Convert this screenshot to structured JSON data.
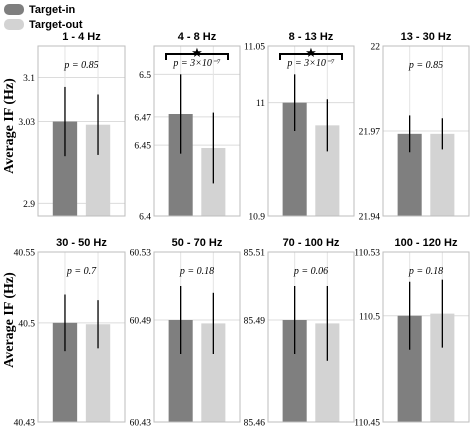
{
  "legend": [
    {
      "label": "Target-in",
      "color": "#7f7f7f"
    },
    {
      "label": "Target-out",
      "color": "#d3d3d3"
    }
  ],
  "ylabel": "Average IF (Hz)",
  "colors": {
    "target_in": "#7f7f7f",
    "target_out": "#d3d3d3"
  },
  "chart_data": [
    {
      "type": "bar",
      "title": "1 - 4 Hz",
      "categories": [
        "Target-in",
        "Target-out"
      ],
      "values": [
        3.03,
        3.025
      ],
      "errors": [
        0.055,
        0.048
      ],
      "ylim": [
        2.88,
        3.15
      ],
      "yticks": [
        "2.9",
        "3.03",
        "3.1"
      ],
      "tick_values": [
        2.9,
        3.03,
        3.1
      ],
      "p_text": "p = 0.85",
      "significance": false,
      "star": ""
    },
    {
      "type": "bar",
      "title": "4 - 8 Hz",
      "categories": [
        "Target-in",
        "Target-out"
      ],
      "values": [
        6.472,
        6.448
      ],
      "errors": [
        0.028,
        0.025
      ],
      "ylim": [
        6.4,
        6.52
      ],
      "yticks": [
        "6.4",
        "6.45",
        "6.47",
        "6.5"
      ],
      "tick_values": [
        6.4,
        6.45,
        6.47,
        6.5
      ],
      "p_text": "p = 3×10⁻⁷",
      "significance": true,
      "star": "★"
    },
    {
      "type": "bar",
      "title": "8 - 13 Hz",
      "categories": [
        "Target-in",
        "Target-out"
      ],
      "values": [
        11.0,
        10.98
      ],
      "errors": [
        0.025,
        0.023
      ],
      "ylim": [
        10.9,
        11.05
      ],
      "yticks": [
        "10.9",
        "11",
        "11.05"
      ],
      "tick_values": [
        10.9,
        11.0,
        11.05
      ],
      "p_text": "p = 3×10⁻⁷",
      "significance": true,
      "star": "★"
    },
    {
      "type": "bar",
      "title": "13 - 30 Hz",
      "categories": [
        "Target-in",
        "Target-out"
      ],
      "values": [
        21.969,
        21.969
      ],
      "errors": [
        0.0065,
        0.0055
      ],
      "ylim": [
        21.94,
        22.0
      ],
      "yticks": [
        "21.94",
        "21.97",
        "22"
      ],
      "tick_values": [
        21.94,
        21.97,
        22.0
      ],
      "p_text": "p = 0.85",
      "significance": false,
      "star": ""
    },
    {
      "type": "bar",
      "title": "30 - 50 Hz",
      "categories": [
        "Target-in",
        "Target-out"
      ],
      "values": [
        40.5,
        40.499
      ],
      "errors": [
        0.02,
        0.017
      ],
      "ylim": [
        40.43,
        40.55
      ],
      "yticks": [
        "40.43",
        "40.5",
        "40.55"
      ],
      "tick_values": [
        40.43,
        40.5,
        40.55
      ],
      "p_text": "p = 0.7",
      "significance": false,
      "star": ""
    },
    {
      "type": "bar",
      "title": "50 - 70 Hz",
      "categories": [
        "Target-in",
        "Target-out"
      ],
      "values": [
        60.49,
        60.488
      ],
      "errors": [
        0.02,
        0.018
      ],
      "ylim": [
        60.43,
        60.53
      ],
      "yticks": [
        "60.43",
        "60.49",
        "60.53"
      ],
      "tick_values": [
        60.43,
        60.49,
        60.53
      ],
      "p_text": "p = 0.18",
      "significance": false,
      "star": ""
    },
    {
      "type": "bar",
      "title": "70 - 100 Hz",
      "categories": [
        "Target-in",
        "Target-out"
      ],
      "values": [
        85.49,
        85.489
      ],
      "errors": [
        0.01,
        0.011
      ],
      "ylim": [
        85.46,
        85.51
      ],
      "yticks": [
        "85.46",
        "85.49",
        "85.51"
      ],
      "tick_values": [
        85.46,
        85.49,
        85.51
      ],
      "p_text": "p = 0.06",
      "significance": false,
      "star": ""
    },
    {
      "type": "bar",
      "title": "100 - 120 Hz",
      "categories": [
        "Target-in",
        "Target-out"
      ],
      "values": [
        110.5,
        110.501
      ],
      "errors": [
        0.016,
        0.016
      ],
      "ylim": [
        110.45,
        110.53
      ],
      "yticks": [
        "110.45",
        "110.5",
        "110.53"
      ],
      "tick_values": [
        110.45,
        110.5,
        110.53
      ],
      "p_text": "p = 0.18",
      "significance": false,
      "star": ""
    }
  ]
}
